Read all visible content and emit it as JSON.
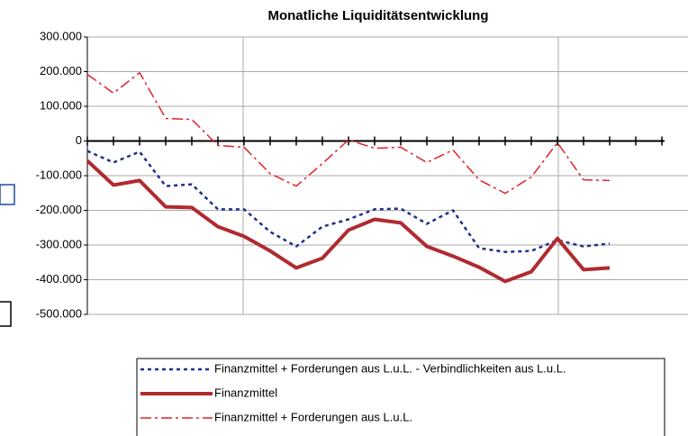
{
  "chart_data": {
    "type": "line",
    "title": "Monatliche Liquiditätsentwicklung",
    "categories": [
      null,
      null,
      null,
      null,
      null,
      null,
      null,
      null,
      null,
      null,
      null,
      null,
      null,
      null,
      null,
      null,
      null,
      null,
      null,
      null,
      null,
      null,
      null
    ],
    "series": [
      {
        "name": "Finanzmittel + Forderungen aus L.u.L. - Verbindlichkeiten aus L.u.L.",
        "color": "#1f2f8f",
        "dash": "4 4",
        "width": 2.5,
        "values": [
          -29000,
          -62000,
          -31000,
          -130000,
          -125000,
          -197000,
          -197000,
          -262000,
          -304000,
          -247000,
          -226000,
          -197000,
          -195000,
          -239000,
          -200000,
          -309000,
          -320000,
          -317000,
          -286000,
          -304000,
          -296000,
          null,
          null
        ]
      },
      {
        "name": "Finanzmittel",
        "color": "#b02a30",
        "dash": "",
        "width": 4,
        "values": [
          -57000,
          -127000,
          -114000,
          -190000,
          -192000,
          -247000,
          -275000,
          -317000,
          -366000,
          -338000,
          -257000,
          -226000,
          -236000,
          -304000,
          -332000,
          -364000,
          -405000,
          -377000,
          -281000,
          -371000,
          -366000,
          null,
          null
        ]
      },
      {
        "name": "Finanzmittel + Forderungen aus L.u.L.",
        "color": "#e3202a",
        "dash": "12 4 3 4",
        "width": 1.5,
        "values": [
          192000,
          138000,
          197000,
          65000,
          62000,
          -13000,
          -18000,
          -94000,
          -130000,
          -65000,
          3000,
          -21000,
          -18000,
          -62000,
          -26000,
          -112000,
          -151000,
          -104000,
          -5000,
          -112000,
          -114000,
          null,
          null
        ]
      }
    ],
    "ylim": [
      -500000,
      300000
    ],
    "yticks": [
      {
        "value": -500000,
        "label": "-500.000"
      },
      {
        "value": -400000,
        "label": "-400.000"
      },
      {
        "value": -300000,
        "label": "-300.000"
      },
      {
        "value": -200000,
        "label": "-200.000"
      },
      {
        "value": -100000,
        "label": "-100.000"
      },
      0,
      {
        "value": 100000,
        "label": "100.000"
      },
      {
        "value": 200000,
        "label": "200.000"
      },
      {
        "value": 300000,
        "label": "300.000"
      }
    ],
    "grid": true
  }
}
